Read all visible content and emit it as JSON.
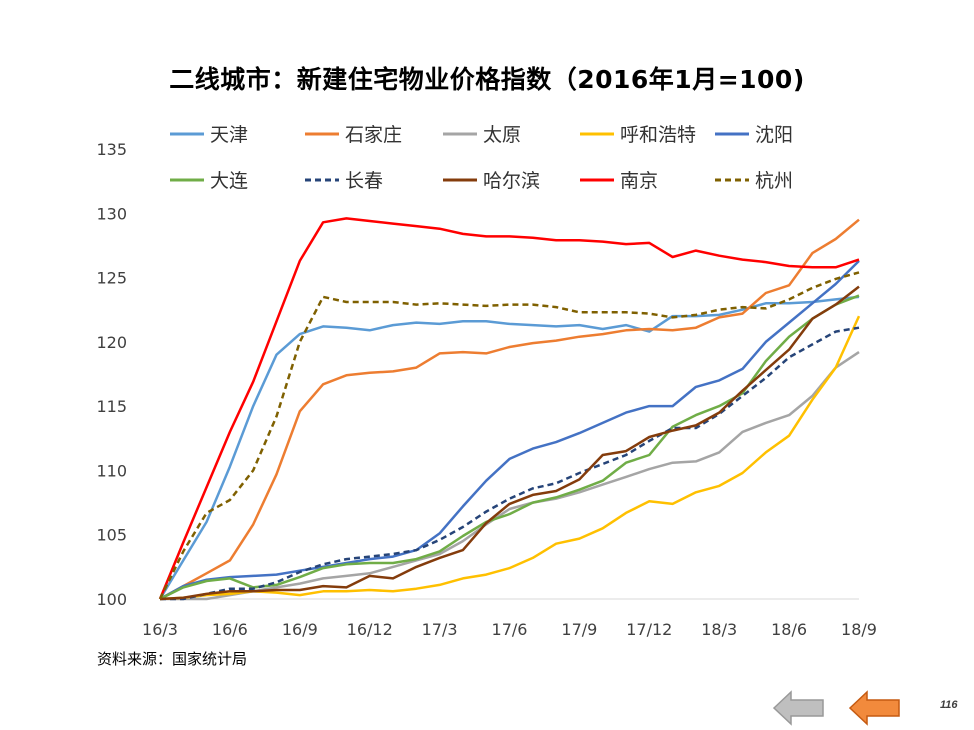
{
  "title": "二线城市：新建住宅物业价格指数（2016年1月=100)",
  "source": "资料来源：国家统计局",
  "page_number": "116",
  "nav": {
    "prev_icon": "left-arrow-icon",
    "next_icon": "left-arrow-icon",
    "prev_color": "#bfbfbf",
    "next_color": "#f28a3c"
  },
  "chart_data": {
    "type": "line",
    "title": "二线城市：新建住宅物业价格指数（2016年1月=100)",
    "xlabel": "",
    "ylabel": "",
    "ylim": [
      100,
      135
    ],
    "yticks": [
      100,
      105,
      110,
      115,
      120,
      125,
      130,
      135
    ],
    "xticks": [
      "16/3",
      "16/6",
      "16/9",
      "16/12",
      "17/3",
      "17/6",
      "17/9",
      "17/12",
      "18/3",
      "18/6",
      "18/9"
    ],
    "x": [
      "16/3",
      "16/4",
      "16/5",
      "16/6",
      "16/7",
      "16/8",
      "16/9",
      "16/10",
      "16/11",
      "16/12",
      "17/1",
      "17/2",
      "17/3",
      "17/4",
      "17/5",
      "17/6",
      "17/7",
      "17/8",
      "17/9",
      "17/10",
      "17/11",
      "17/12",
      "18/1",
      "18/2",
      "18/3",
      "18/4",
      "18/5",
      "18/6",
      "18/7",
      "18/8",
      "18/9"
    ],
    "grid": false,
    "legend_position": "top",
    "series": [
      {
        "name": "天津",
        "color": "#5b9bd5",
        "dash": "solid",
        "values": [
          100,
          103,
          106,
          110.3,
          115,
          119,
          120.6,
          121.2,
          121.1,
          120.9,
          121.3,
          121.5,
          121.4,
          121.6,
          121.6,
          121.4,
          121.3,
          121.2,
          121.3,
          121.0,
          121.3,
          120.8,
          122.0,
          122.0,
          122.1,
          122.5,
          123.0,
          123.0,
          123.1,
          123.3,
          123.5
        ]
      },
      {
        "name": "石家庄",
        "color": "#ed7d31",
        "dash": "solid",
        "values": [
          100,
          101.0,
          102.0,
          103.0,
          105.8,
          109.7,
          114.6,
          116.7,
          117.4,
          117.6,
          117.7,
          118.0,
          119.1,
          119.2,
          119.1,
          119.6,
          119.9,
          120.1,
          120.4,
          120.6,
          120.9,
          121.0,
          120.9,
          121.1,
          121.9,
          122.2,
          123.8,
          124.4,
          126.9,
          128.0,
          129.5
        ]
      },
      {
        "name": "太原",
        "color": "#a5a5a5",
        "dash": "solid",
        "values": [
          100,
          100.0,
          100.0,
          100.3,
          100.6,
          100.9,
          101.2,
          101.6,
          101.8,
          102.0,
          102.5,
          103.0,
          103.5,
          104.5,
          105.8,
          107.0,
          107.5,
          107.8,
          108.3,
          108.9,
          109.5,
          110.1,
          110.6,
          110.7,
          111.4,
          113.0,
          113.7,
          114.3,
          115.8,
          118.0,
          119.2
        ]
      },
      {
        "name": "呼和浩特",
        "color": "#ffc000",
        "dash": "solid",
        "values": [
          100,
          100.1,
          100.3,
          100.4,
          100.6,
          100.5,
          100.3,
          100.6,
          100.6,
          100.7,
          100.6,
          100.8,
          101.1,
          101.6,
          101.9,
          102.4,
          103.2,
          104.3,
          104.7,
          105.5,
          106.7,
          107.6,
          107.4,
          108.3,
          108.8,
          109.8,
          111.4,
          112.7,
          115.5,
          118.0,
          122.0
        ]
      },
      {
        "name": "沈阳",
        "color": "#4472c4",
        "dash": "solid",
        "values": [
          100,
          101.0,
          101.5,
          101.7,
          101.8,
          101.9,
          102.2,
          102.5,
          102.8,
          103.1,
          103.3,
          103.8,
          105.1,
          107.2,
          109.2,
          110.9,
          111.7,
          112.2,
          112.9,
          113.7,
          114.5,
          115.0,
          115.0,
          116.5,
          117.0,
          117.9,
          120.0,
          121.5,
          123.0,
          124.5,
          126.3
        ]
      },
      {
        "name": "大连",
        "color": "#70ad47",
        "dash": "solid",
        "values": [
          100,
          100.9,
          101.4,
          101.6,
          100.9,
          101.1,
          101.7,
          102.4,
          102.7,
          102.8,
          102.8,
          103.1,
          103.7,
          104.9,
          106.0,
          106.6,
          107.5,
          107.9,
          108.5,
          109.2,
          110.6,
          111.2,
          113.4,
          114.3,
          115.0,
          116.0,
          118.5,
          120.4,
          121.8,
          122.9,
          123.6
        ]
      },
      {
        "name": "长春",
        "color": "#264478",
        "dash": "dashed",
        "values": [
          100,
          100.0,
          100.4,
          100.8,
          100.8,
          101.3,
          102.1,
          102.7,
          103.1,
          103.3,
          103.5,
          103.8,
          104.6,
          105.6,
          106.8,
          107.8,
          108.6,
          109.0,
          109.8,
          110.5,
          111.2,
          112.3,
          113.3,
          113.3,
          114.4,
          115.8,
          117.2,
          118.8,
          119.8,
          120.8,
          121.1
        ]
      },
      {
        "name": "哈尔滨",
        "color": "#843c0c",
        "dash": "solid",
        "values": [
          100,
          100.1,
          100.4,
          100.6,
          100.6,
          100.7,
          100.7,
          101.0,
          100.9,
          101.8,
          101.6,
          102.5,
          103.2,
          103.8,
          105.9,
          107.4,
          108.1,
          108.4,
          109.3,
          111.2,
          111.5,
          112.6,
          113.1,
          113.5,
          114.5,
          116.2,
          117.8,
          119.4,
          121.8,
          122.9,
          124.3
        ]
      },
      {
        "name": "南京",
        "color": "#ff0000",
        "dash": "solid",
        "values": [
          100,
          104.4,
          108.7,
          113.0,
          116.9,
          121.6,
          126.3,
          129.3,
          129.6,
          129.4,
          129.2,
          129.0,
          128.8,
          128.4,
          128.2,
          128.2,
          128.1,
          127.9,
          127.9,
          127.8,
          127.6,
          127.7,
          126.6,
          127.1,
          126.7,
          126.4,
          126.2,
          125.9,
          125.8,
          125.8,
          126.4
        ]
      },
      {
        "name": "杭州",
        "color": "#7f6000",
        "dash": "dashed",
        "values": [
          100,
          103.7,
          106.7,
          107.7,
          110.0,
          114.2,
          120.0,
          123.5,
          123.1,
          123.1,
          123.1,
          122.9,
          123.0,
          122.9,
          122.8,
          122.9,
          122.9,
          122.7,
          122.3,
          122.3,
          122.3,
          122.2,
          121.9,
          122.1,
          122.5,
          122.7,
          122.6,
          123.3,
          124.2,
          124.9,
          125.4
        ]
      }
    ]
  }
}
